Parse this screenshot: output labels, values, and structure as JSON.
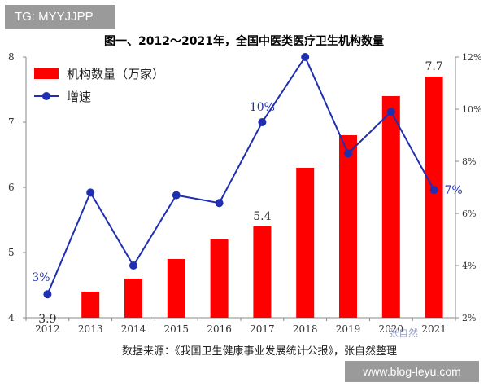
{
  "watermark_top": "TG: MYYJJPP",
  "watermark_bottom": "www.blog-leyu.com",
  "watermark_overlay": "张自然",
  "source_note": "数据来源：《我国卫生健康事业发展统计公报》，张自然整理",
  "colors": {
    "bar": "#ff0000",
    "line": "#1f2fb0",
    "axis": "#888888",
    "grid": "#cccccc"
  },
  "chart_data": {
    "type": "bar+line",
    "title": "图一、2012～2021年，全国中医类医疗卫生机构数量",
    "categories": [
      "2012",
      "2013",
      "2014",
      "2015",
      "2016",
      "2017",
      "2018",
      "2019",
      "2020",
      "2021"
    ],
    "series": [
      {
        "name": "机构数量（万家）",
        "type": "bar",
        "axis": "left",
        "values": [
          3.9,
          4.4,
          4.6,
          4.9,
          5.2,
          5.4,
          6.3,
          6.8,
          7.4,
          7.7
        ]
      },
      {
        "name": "增速",
        "type": "line",
        "axis": "right",
        "values": [
          2.9,
          6.8,
          4.0,
          6.7,
          6.4,
          9.5,
          12.0,
          8.3,
          9.9,
          6.9
        ]
      }
    ],
    "y_left": {
      "min": 4,
      "max": 8,
      "ticks": [
        "4",
        "5",
        "6",
        "7",
        "8"
      ]
    },
    "y_right": {
      "min": 2,
      "max": 12,
      "ticks": [
        "2%",
        "4%",
        "6%",
        "8%",
        "10%",
        "12%"
      ]
    },
    "data_labels": [
      {
        "series": 0,
        "index": 0,
        "text": "3.9"
      },
      {
        "series": 0,
        "index": 5,
        "text": "5.4"
      },
      {
        "series": 0,
        "index": 9,
        "text": "7.7"
      },
      {
        "series": 1,
        "index": 0,
        "text": "3%"
      },
      {
        "series": 1,
        "index": 5,
        "text": "10%"
      },
      {
        "series": 1,
        "index": 9,
        "text": "7%"
      }
    ],
    "legend_position": "top-left",
    "grid": false
  }
}
